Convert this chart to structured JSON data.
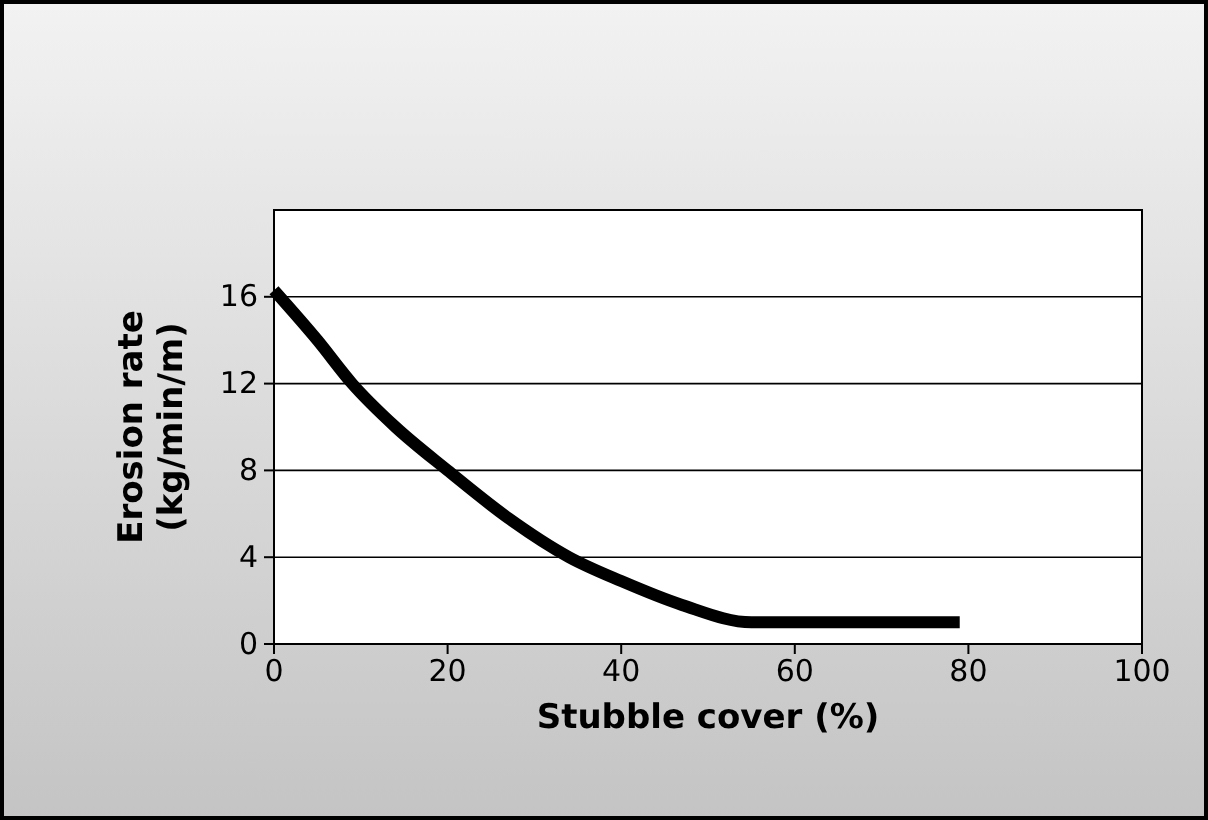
{
  "chart_data": {
    "type": "line",
    "xlabel": "Stubble cover (%)",
    "ylabel": "Erosion rate\n(kg/min/m)",
    "x": [
      0,
      5,
      9,
      14,
      20,
      27,
      34,
      40,
      47,
      55,
      79
    ],
    "series": [
      {
        "color": "#000000",
        "values": [
          16.3,
          14,
          12,
          10,
          8,
          5.8,
          4,
          2.9,
          1.8,
          1.0,
          1.0
        ]
      }
    ],
    "xlim": [
      0,
      100
    ],
    "xticks": [
      0,
      20,
      40,
      60,
      80,
      100
    ],
    "ylim": [
      0,
      20
    ],
    "yticks": [
      0,
      4,
      8,
      12,
      16
    ],
    "grid": "y",
    "line_style": "solid",
    "marker": "none"
  }
}
